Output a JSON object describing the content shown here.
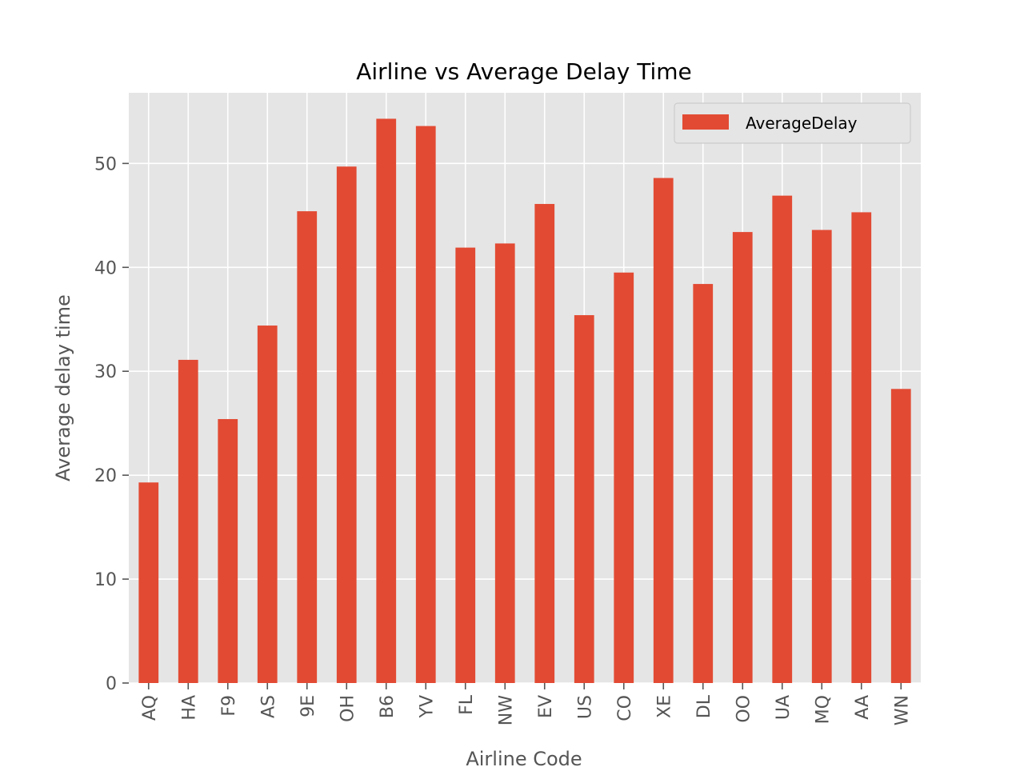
{
  "chart_data": {
    "type": "bar",
    "title": "Airline vs Average Delay Time",
    "xlabel": "Airline Code",
    "ylabel": "Average delay time",
    "categories": [
      "AQ",
      "HA",
      "F9",
      "AS",
      "9E",
      "OH",
      "B6",
      "YV",
      "FL",
      "NW",
      "EV",
      "US",
      "CO",
      "XE",
      "DL",
      "OO",
      "UA",
      "MQ",
      "AA",
      "WN"
    ],
    "series": [
      {
        "name": "AverageDelay",
        "values": [
          19.3,
          31.1,
          25.4,
          34.4,
          45.4,
          49.7,
          54.3,
          53.6,
          41.9,
          42.3,
          46.1,
          35.4,
          39.5,
          48.6,
          38.4,
          43.4,
          46.9,
          43.6,
          45.3,
          28.3
        ]
      }
    ],
    "ylim": [
      0,
      56.8
    ],
    "yticks": [
      0,
      10,
      20,
      30,
      40,
      50
    ],
    "grid": true,
    "legend_position": "top-right",
    "colors": {
      "bar": "#e24a33",
      "plot_background": "#e5e5e5",
      "grid": "#ffffff",
      "tick_text": "#555555",
      "label_text": "#555555",
      "title_text": "#000000"
    }
  }
}
